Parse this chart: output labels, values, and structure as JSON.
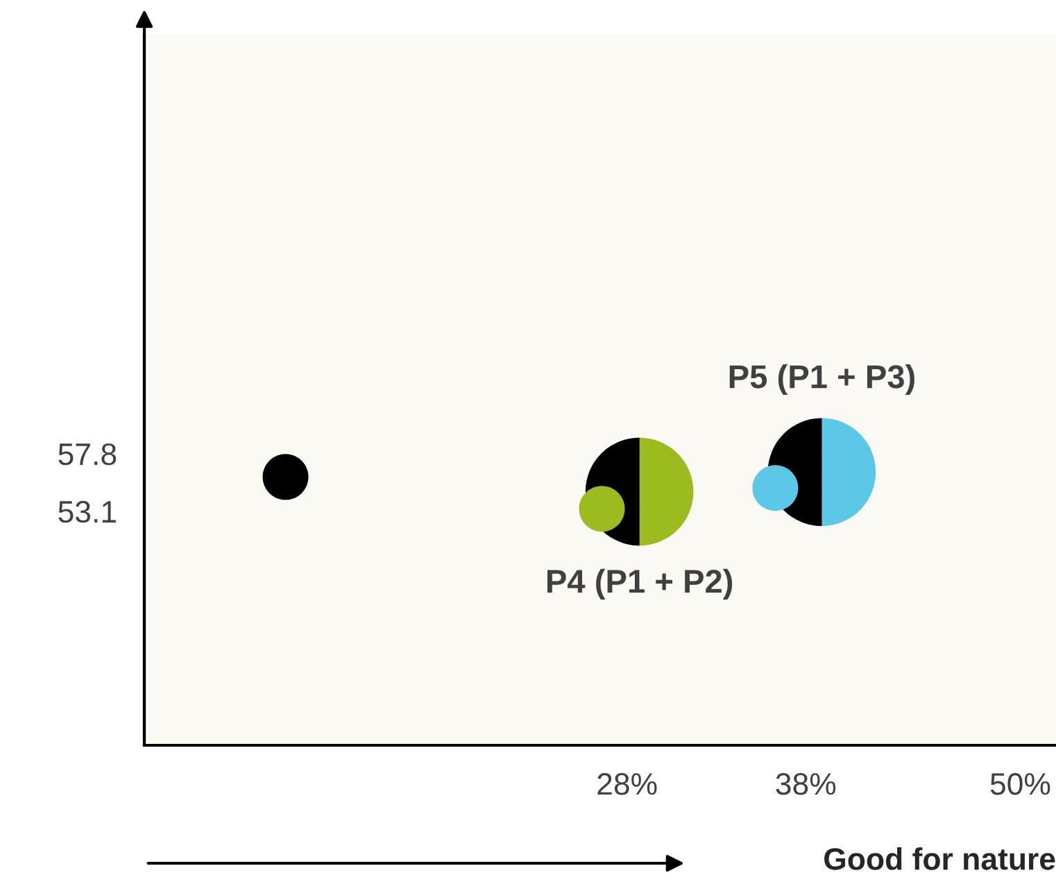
{
  "chart_data": {
    "type": "bubble",
    "xlabel": "Good for nature",
    "xlim": [
      1,
      52
    ],
    "ylim": [
      34,
      92
    ],
    "xticks": [
      {
        "value": 28,
        "label": "28%"
      },
      {
        "value": 38,
        "label": "38%"
      },
      {
        "value": 50,
        "label": "50%"
      }
    ],
    "yticks": [
      57.8,
      53.1
    ],
    "series": [
      {
        "color": "#000000",
        "x": [
          8.9
        ],
        "values": [
          55.9
        ],
        "sizes": [
          0.18
        ]
      },
      {
        "color": "#9bbb1f",
        "x": [
          26.6
        ],
        "values": [
          53.3
        ],
        "sizes": [
          0.18
        ]
      },
      {
        "color": "#5bc8e8",
        "x": [
          36.3
        ],
        "values": [
          55.0
        ],
        "sizes": [
          0.18
        ]
      },
      {
        "color": "#9bbb1f",
        "x": [
          28.7
        ],
        "values": [
          54.7
        ],
        "sizes": [
          1
        ]
      },
      {
        "color": "#5bc8e8",
        "x": [
          38.9
        ],
        "values": [
          56.3
        ],
        "sizes": [
          1
        ]
      }
    ],
    "annotations": [
      {
        "text": "P4 (P1 + P2)",
        "x": 28.7,
        "y": 54.7
      },
      {
        "text": "P5 (P1 + P3)",
        "x": 38.9,
        "y": 56.3
      }
    ],
    "grid": false,
    "legend": false
  }
}
